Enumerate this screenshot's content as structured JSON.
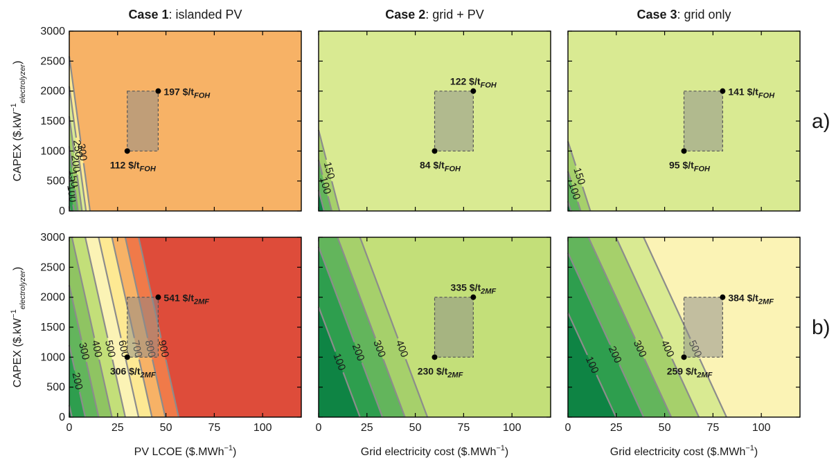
{
  "chart_data": {
    "type": "contour",
    "row_labels": [
      "a)",
      "b)"
    ],
    "ylabel": {
      "main": "CAPEX ($.kW",
      "sup": "−1",
      "sub": "electrolyzer",
      "close": ")"
    },
    "yticks": [
      "0",
      "500",
      "1000",
      "1500",
      "2000",
      "2500",
      "3000"
    ],
    "xticks": [
      "0",
      "25",
      "50",
      "75",
      "100"
    ],
    "xlim": [
      0,
      120
    ],
    "ylim": [
      0,
      3000
    ],
    "columns": [
      {
        "title_bold": "Case 1",
        "title_rest": ": islanded PV",
        "xlabel": {
          "main": "PV LCOE ($.MWh",
          "sup": "−1",
          "close": ")"
        }
      },
      {
        "title_bold": "Case 2",
        "title_rest": ": grid + PV",
        "xlabel": {
          "main": "Grid electricity cost ($.MWh",
          "sup": "−1",
          "close": ")"
        }
      },
      {
        "title_bold": "Case 3",
        "title_rest": ": grid only",
        "xlabel": {
          "main": "Grid electricity cost ($.MWh",
          "sup": "−1",
          "close": ")"
        }
      }
    ],
    "panels": [
      {
        "row": 0,
        "col": 0,
        "slope": 24,
        "offset": 42,
        "step": 50,
        "levels": [
          50,
          100,
          150,
          200,
          250,
          300
        ],
        "colors": [
          "#0e8444",
          "#2e9e4e",
          "#63b55c",
          "#a6d06b",
          "#d9ea92",
          "#fde993",
          "#f7b266",
          "#f07a49",
          "#de4c3a",
          "#bd1e2e"
        ],
        "box": {
          "x": [
            30,
            46
          ],
          "y": [
            1000,
            2000
          ]
        },
        "points": [
          {
            "x": 30,
            "y": 1000,
            "value": "112",
            "unit": "$/t",
            "sub": "FOH",
            "pos": "below"
          },
          {
            "x": 46,
            "y": 2000,
            "value": "197",
            "unit": "$/t",
            "sub": "FOH",
            "pos": "right"
          }
        ]
      },
      {
        "row": 0,
        "col": 1,
        "slope": 12.5,
        "offset": 15,
        "step": 50,
        "levels": [
          50,
          100,
          150
        ],
        "colors": [
          "#0e8444",
          "#63b55c",
          "#a6d06b",
          "#d9ea92"
        ],
        "box": {
          "x": [
            60,
            80
          ],
          "y": [
            1000,
            2000
          ]
        },
        "points": [
          {
            "x": 60,
            "y": 1000,
            "value": "84",
            "unit": "$/t",
            "sub": "FOH",
            "pos": "below"
          },
          {
            "x": 80,
            "y": 2000,
            "value": "122",
            "unit": "$/t",
            "sub": "FOH",
            "pos": "above"
          }
        ]
      },
      {
        "row": 0,
        "col": 2,
        "slope": 10,
        "offset": 34,
        "step": 50,
        "levels": [
          50,
          100,
          150
        ],
        "colors": [
          "#0e8444",
          "#63b55c",
          "#a6d06b",
          "#d9ea92",
          "#fde993"
        ],
        "box": {
          "x": [
            60,
            80
          ],
          "y": [
            1000,
            2000
          ]
        },
        "points": [
          {
            "x": 60,
            "y": 1000,
            "value": "95",
            "unit": "$/t",
            "sub": "FOH",
            "pos": "below"
          },
          {
            "x": 80,
            "y": 2000,
            "value": "141",
            "unit": "$/t",
            "sub": "FOH",
            "pos": "right"
          }
        ]
      },
      {
        "row": 1,
        "col": 0,
        "slope": 14.5,
        "offset": 80,
        "step": 100,
        "levels": [
          100,
          200,
          300,
          400,
          500,
          600,
          700,
          800,
          900
        ],
        "colors": [
          "#0e8444",
          "#2e9e4e",
          "#63b55c",
          "#8fc462",
          "#c3df79",
          "#fbf3b5",
          "#fde993",
          "#f7b266",
          "#f07a49",
          "#de4c3a",
          "#bd1e2e"
        ],
        "box": {
          "x": [
            30,
            46
          ],
          "y": [
            1000,
            2000
          ]
        },
        "points": [
          {
            "x": 30,
            "y": 1000,
            "value": "306",
            "unit": "$/t",
            "sub": "2MF",
            "pos": "below"
          },
          {
            "x": 46,
            "y": 2000,
            "value": "541",
            "unit": "$/t",
            "sub": "2MF",
            "pos": "right"
          }
        ]
      },
      {
        "row": 1,
        "col": 1,
        "slope": 8.6,
        "offset": -84,
        "step": 100,
        "levels": [
          100,
          200,
          300,
          400
        ],
        "colors": [
          "#0e8444",
          "#2e9e4e",
          "#63b55c",
          "#a6d06b",
          "#c3df79"
        ],
        "box": {
          "x": [
            60,
            80
          ],
          "y": [
            1000,
            2000
          ]
        },
        "points": [
          {
            "x": 60,
            "y": 1000,
            "value": "230",
            "unit": "$/t",
            "sub": "2MF",
            "pos": "below"
          },
          {
            "x": 80,
            "y": 2000,
            "value": "335",
            "unit": "$/t",
            "sub": "2MF",
            "pos": "above"
          }
        ]
      },
      {
        "row": 1,
        "col": 2,
        "slope": 7,
        "offset": -74,
        "step": 100,
        "levels": [
          100,
          200,
          300,
          400,
          500
        ],
        "colors": [
          "#0e8444",
          "#2e9e4e",
          "#63b55c",
          "#a6d06b",
          "#d9ea92",
          "#fbf3b5"
        ],
        "box": {
          "x": [
            60,
            80
          ],
          "y": [
            1000,
            2000
          ]
        },
        "points": [
          {
            "x": 60,
            "y": 1000,
            "value": "259",
            "unit": "$/t",
            "sub": "2MF",
            "pos": "below"
          },
          {
            "x": 80,
            "y": 2000,
            "value": "384",
            "unit": "$/t",
            "sub": "2MF",
            "pos": "right"
          }
        ]
      }
    ]
  }
}
